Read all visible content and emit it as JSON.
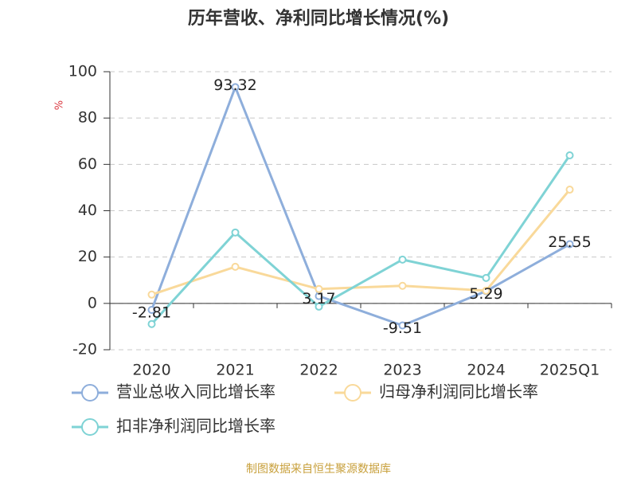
{
  "chart_data": {
    "type": "line",
    "title": "历年营收、净利同比增长情况(%)",
    "y_label": "%",
    "categories": [
      "2020",
      "2021",
      "2022",
      "2023",
      "2024",
      "2025Q1"
    ],
    "series": [
      {
        "name": "营业总收入同比增长率",
        "color": "#8eaedb",
        "values": [
          -2.81,
          93.32,
          3.17,
          -9.51,
          5.29,
          25.55
        ]
      },
      {
        "name": "归母净利润同比增长率",
        "color": "#f9d99a",
        "values": [
          3.8,
          15.8,
          6.2,
          7.6,
          5.5,
          49.1
        ]
      },
      {
        "name": "扣非净利润同比增长率",
        "color": "#7fd3d5",
        "values": [
          -8.9,
          30.6,
          -1.4,
          18.9,
          11,
          63.9
        ]
      }
    ],
    "ylim": [
      -20,
      100
    ],
    "yticks": [
      -20,
      0,
      20,
      40,
      60,
      80,
      100
    ],
    "grid": true,
    "source": "制图数据来自恒生聚源数据库"
  }
}
